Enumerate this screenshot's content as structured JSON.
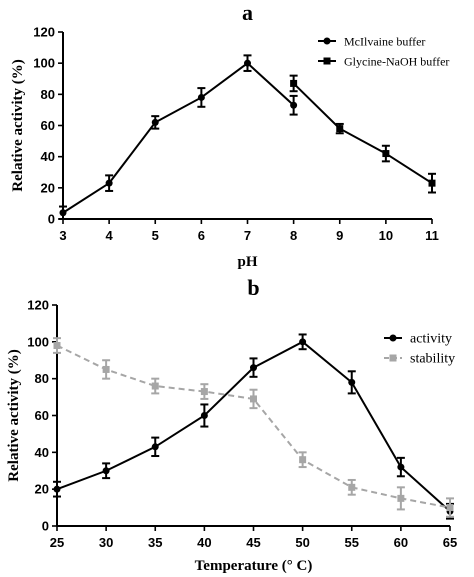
{
  "chart_data": [
    {
      "type": "line",
      "panel_label": "a",
      "xlabel": "pH",
      "ylabel": "Relative activity (%)",
      "xlim": [
        3,
        11
      ],
      "ylim": [
        0,
        120
      ],
      "x_ticks": [
        3,
        4,
        5,
        6,
        7,
        8,
        9,
        10,
        11
      ],
      "y_ticks": [
        0,
        20,
        40,
        60,
        80,
        100,
        120
      ],
      "legend_position": "top-right",
      "series": [
        {
          "name": "McIlvaine buffer",
          "marker": "circle",
          "color": "#000000",
          "dashed": false,
          "points": [
            {
              "x": 3,
              "y": 4,
              "err": 4
            },
            {
              "x": 4,
              "y": 23,
              "err": 5
            },
            {
              "x": 5,
              "y": 62,
              "err": 4
            },
            {
              "x": 6,
              "y": 78,
              "err": 6
            },
            {
              "x": 7,
              "y": 100,
              "err": 5
            },
            {
              "x": 8,
              "y": 73,
              "err": 6
            }
          ]
        },
        {
          "name": "Glycine-NaOH buffer",
          "marker": "square",
          "color": "#000000",
          "dashed": false,
          "points": [
            {
              "x": 8,
              "y": 87,
              "err": 5
            },
            {
              "x": 9,
              "y": 58,
              "err": 3
            },
            {
              "x": 10,
              "y": 42,
              "err": 5
            },
            {
              "x": 11,
              "y": 23,
              "err": 6
            }
          ]
        }
      ]
    },
    {
      "type": "line",
      "panel_label": "b",
      "xlabel": "Temperature (° C)",
      "ylabel": "Relative activity (%)",
      "xlim": [
        25,
        65
      ],
      "ylim": [
        0,
        120
      ],
      "x_ticks": [
        25,
        30,
        35,
        40,
        45,
        50,
        55,
        60,
        65
      ],
      "y_ticks": [
        0,
        20,
        40,
        60,
        80,
        100,
        120
      ],
      "legend_position": "top-right",
      "series": [
        {
          "name": "activity",
          "marker": "circle",
          "color": "#000000",
          "dashed": false,
          "points": [
            {
              "x": 25,
              "y": 20,
              "err": 4
            },
            {
              "x": 30,
              "y": 30,
              "err": 4
            },
            {
              "x": 35,
              "y": 43,
              "err": 5
            },
            {
              "x": 40,
              "y": 60,
              "err": 6
            },
            {
              "x": 45,
              "y": 86,
              "err": 5
            },
            {
              "x": 50,
              "y": 100,
              "err": 4
            },
            {
              "x": 55,
              "y": 78,
              "err": 6
            },
            {
              "x": 60,
              "y": 32,
              "err": 5
            },
            {
              "x": 65,
              "y": 8,
              "err": 4
            }
          ]
        },
        {
          "name": "stability",
          "marker": "square",
          "color": "#a6a6a6",
          "dashed": true,
          "points": [
            {
              "x": 25,
              "y": 98,
              "err": 4
            },
            {
              "x": 30,
              "y": 85,
              "err": 5
            },
            {
              "x": 35,
              "y": 76,
              "err": 4
            },
            {
              "x": 40,
              "y": 73,
              "err": 4
            },
            {
              "x": 45,
              "y": 69,
              "err": 5
            },
            {
              "x": 50,
              "y": 36,
              "err": 4
            },
            {
              "x": 55,
              "y": 21,
              "err": 4
            },
            {
              "x": 60,
              "y": 15,
              "err": 6
            },
            {
              "x": 65,
              "y": 10,
              "err": 5
            }
          ]
        }
      ]
    }
  ]
}
